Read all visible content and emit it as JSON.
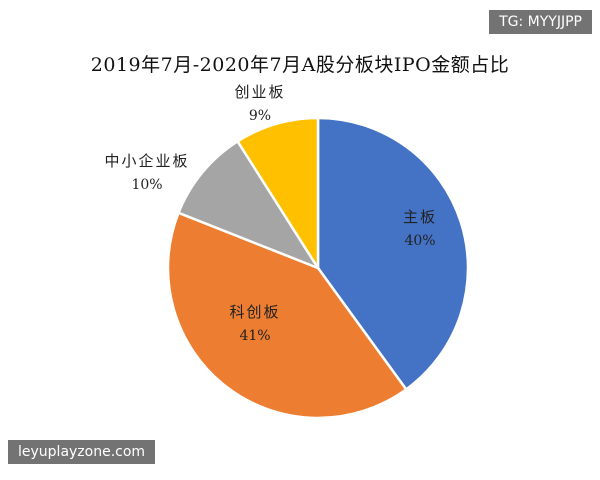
{
  "chart_data": {
    "type": "pie",
    "title": "2019年7月-2020年7月A股分板块IPO金额占比",
    "slices": [
      {
        "name": "主板",
        "value": 40,
        "label": "40%",
        "color": "#4472C4"
      },
      {
        "name": "科创板",
        "value": 41,
        "label": "41%",
        "color": "#ED7D31"
      },
      {
        "name": "中小企业板",
        "value": 10,
        "label": "10%",
        "color": "#A5A5A5"
      },
      {
        "name": "创业板",
        "value": 9,
        "label": "9%",
        "color": "#FFC000"
      }
    ],
    "start": "12 o'clock",
    "direction": "clockwise"
  },
  "watermarks": {
    "top_right": "TG: MYYJJPP",
    "bottom_left": "leyuplayzone.com"
  }
}
